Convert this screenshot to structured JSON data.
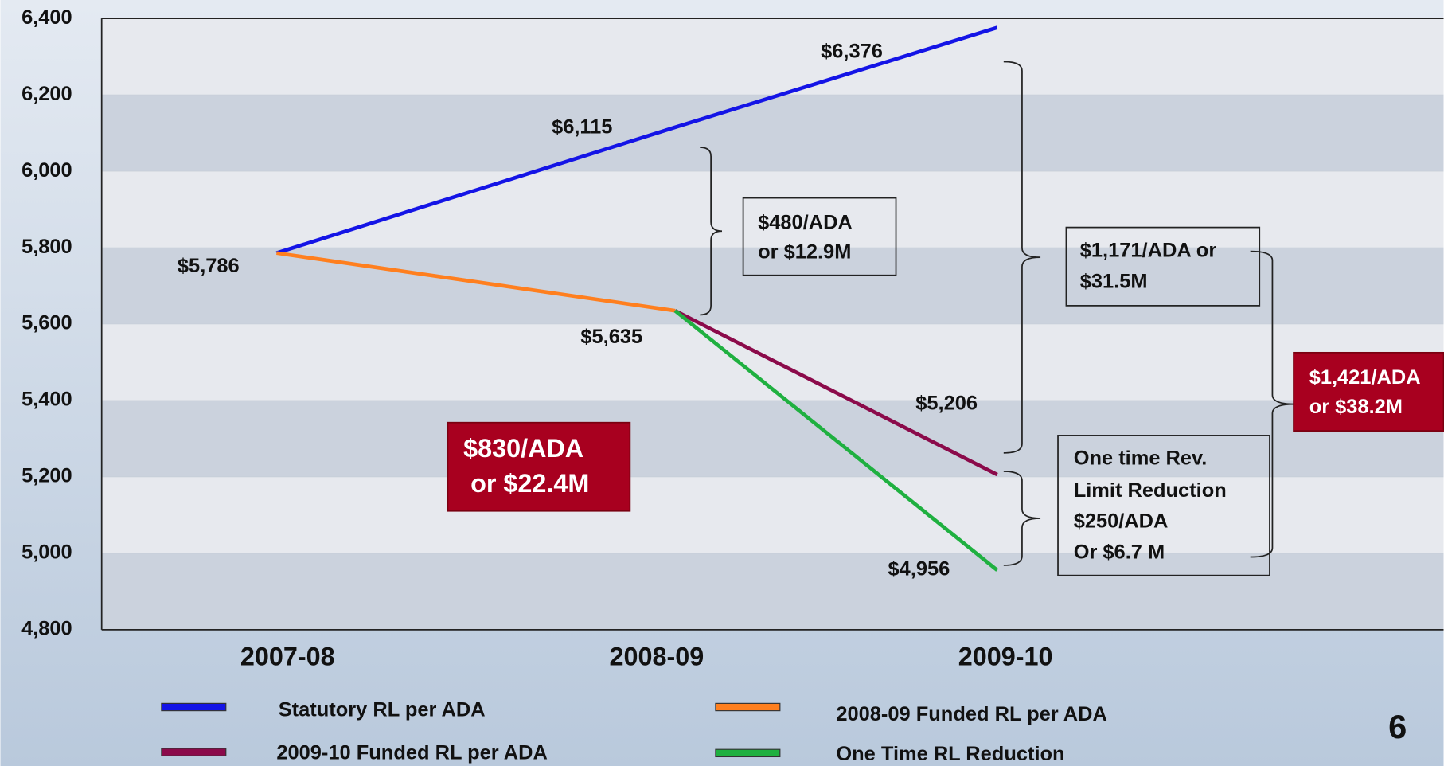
{
  "chart_data": {
    "type": "line",
    "categories": [
      "2007-08",
      "2008-09",
      "2009-10"
    ],
    "ylim": [
      4800,
      6400
    ],
    "yticks": [
      {
        "value": 4800,
        "label": "4,800"
      },
      {
        "value": 5000,
        "label": "5,000"
      },
      {
        "value": 5200,
        "label": "5,200"
      },
      {
        "value": 5400,
        "label": "5,400"
      },
      {
        "value": 5600,
        "label": "5,600"
      },
      {
        "value": 5800,
        "label": "5,800"
      },
      {
        "value": 6000,
        "label": "6,000"
      },
      {
        "value": 6200,
        "label": "6,200"
      },
      {
        "value": 6400,
        "label": "6,400"
      }
    ],
    "grid": true,
    "series": [
      {
        "name": "Statutory RL per ADA",
        "color": "#1414e6",
        "values": [
          5786,
          6115,
          6376
        ],
        "value_labels": [
          "$5,786",
          "$6,115",
          "$6,376"
        ]
      },
      {
        "name": "2008-09 Funded RL per ADA",
        "color": "#ff7f1e",
        "values": [
          5786,
          5635,
          null
        ],
        "value_labels": [
          null,
          "$5,635",
          null
        ]
      },
      {
        "name": "2009-10 Funded RL per ADA",
        "color": "#8b0a4a",
        "values": [
          null,
          5635,
          5206
        ],
        "value_labels": [
          null,
          null,
          "$5,206"
        ]
      },
      {
        "name": "One Time RL Reduction",
        "color": "#1fb040",
        "values": [
          null,
          5635,
          4956
        ],
        "value_labels": [
          null,
          null,
          "$4,956"
        ]
      },
      {
        "color": "#111111",
        "dashed": true,
        "values": [
          5786,
          null,
          4956
        ]
      }
    ],
    "annotations": [
      {
        "lines": [
          "$480/ADA",
          "or $12.9M"
        ],
        "highlight": false
      },
      {
        "lines": [
          "$1,171/ADA or",
          "$31.5M"
        ],
        "highlight": false
      },
      {
        "lines": [
          "$1,421/ADA",
          "or $38.2M"
        ],
        "highlight": true
      },
      {
        "lines": [
          "One time Rev.",
          "Limit Reduction",
          "$250/ADA",
          "Or $6.7 M"
        ],
        "highlight": false
      },
      {
        "lines": [
          "$830/ADA",
          " or $22.4M"
        ],
        "highlight": true
      }
    ],
    "page_number": "6"
  }
}
